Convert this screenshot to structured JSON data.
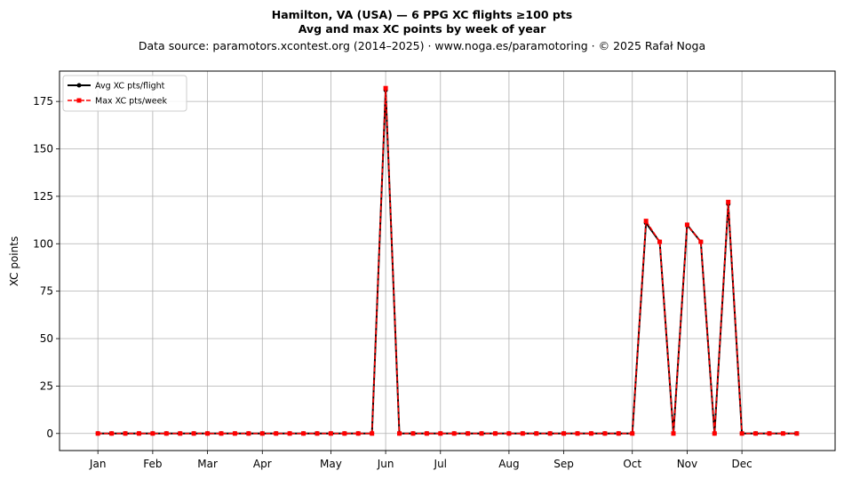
{
  "chart_data": {
    "type": "line",
    "title_line1": "Hamilton, VA (USA)  —  6 PPG XC flights ≥100 pts",
    "title_line2": "Avg and max XC points by week of year",
    "subtitle": "Data source: paramotors.xcontest.org (2014–2025)  ·  www.noga.es/paramotoring  ·  © 2025 Rafał Noga",
    "xlabel": "",
    "ylabel": "XC points",
    "xlim": [
      -1.8,
      54.8
    ],
    "ylim": [
      -9,
      191
    ],
    "grid": true,
    "legend_position": "top-left",
    "x_ticks": [
      {
        "label": "Jan",
        "week": 1
      },
      {
        "label": "Feb",
        "week": 5
      },
      {
        "label": "Mar",
        "week": 9
      },
      {
        "label": "Apr",
        "week": 13
      },
      {
        "label": "May",
        "week": 18
      },
      {
        "label": "Jun",
        "week": 22
      },
      {
        "label": "Jul",
        "week": 26
      },
      {
        "label": "Aug",
        "week": 31
      },
      {
        "label": "Sep",
        "week": 35
      },
      {
        "label": "Oct",
        "week": 40
      },
      {
        "label": "Nov",
        "week": 44
      },
      {
        "label": "Dec",
        "week": 48
      }
    ],
    "y_ticks": [
      0,
      25,
      50,
      75,
      100,
      125,
      150,
      175
    ],
    "x": [
      1,
      2,
      3,
      4,
      5,
      6,
      7,
      8,
      9,
      10,
      11,
      12,
      13,
      14,
      15,
      16,
      17,
      18,
      19,
      20,
      21,
      22,
      23,
      24,
      25,
      26,
      27,
      28,
      29,
      30,
      31,
      32,
      33,
      34,
      35,
      36,
      37,
      38,
      39,
      40,
      41,
      42,
      43,
      44,
      45,
      46,
      47,
      48,
      49,
      50,
      51,
      52
    ],
    "series": [
      {
        "name": "Avg XC pts/flight",
        "color": "#000000",
        "style": "solid-circle",
        "values": [
          0,
          0,
          0,
          0,
          0,
          0,
          0,
          0,
          0,
          0,
          0,
          0,
          0,
          0,
          0,
          0,
          0,
          0,
          0,
          0,
          0,
          181,
          0,
          0,
          0,
          0,
          0,
          0,
          0,
          0,
          0,
          0,
          0,
          0,
          0,
          0,
          0,
          0,
          0,
          0,
          111,
          101,
          0,
          110,
          101,
          0,
          121,
          0,
          0,
          0,
          0,
          0
        ]
      },
      {
        "name": "Max XC pts/week",
        "color": "#ff0000",
        "style": "dashed-square",
        "values": [
          0,
          0,
          0,
          0,
          0,
          0,
          0,
          0,
          0,
          0,
          0,
          0,
          0,
          0,
          0,
          0,
          0,
          0,
          0,
          0,
          0,
          182,
          0,
          0,
          0,
          0,
          0,
          0,
          0,
          0,
          0,
          0,
          0,
          0,
          0,
          0,
          0,
          0,
          0,
          0,
          112,
          101,
          0,
          110,
          101,
          0,
          122,
          0,
          0,
          0,
          0,
          0
        ]
      }
    ]
  }
}
